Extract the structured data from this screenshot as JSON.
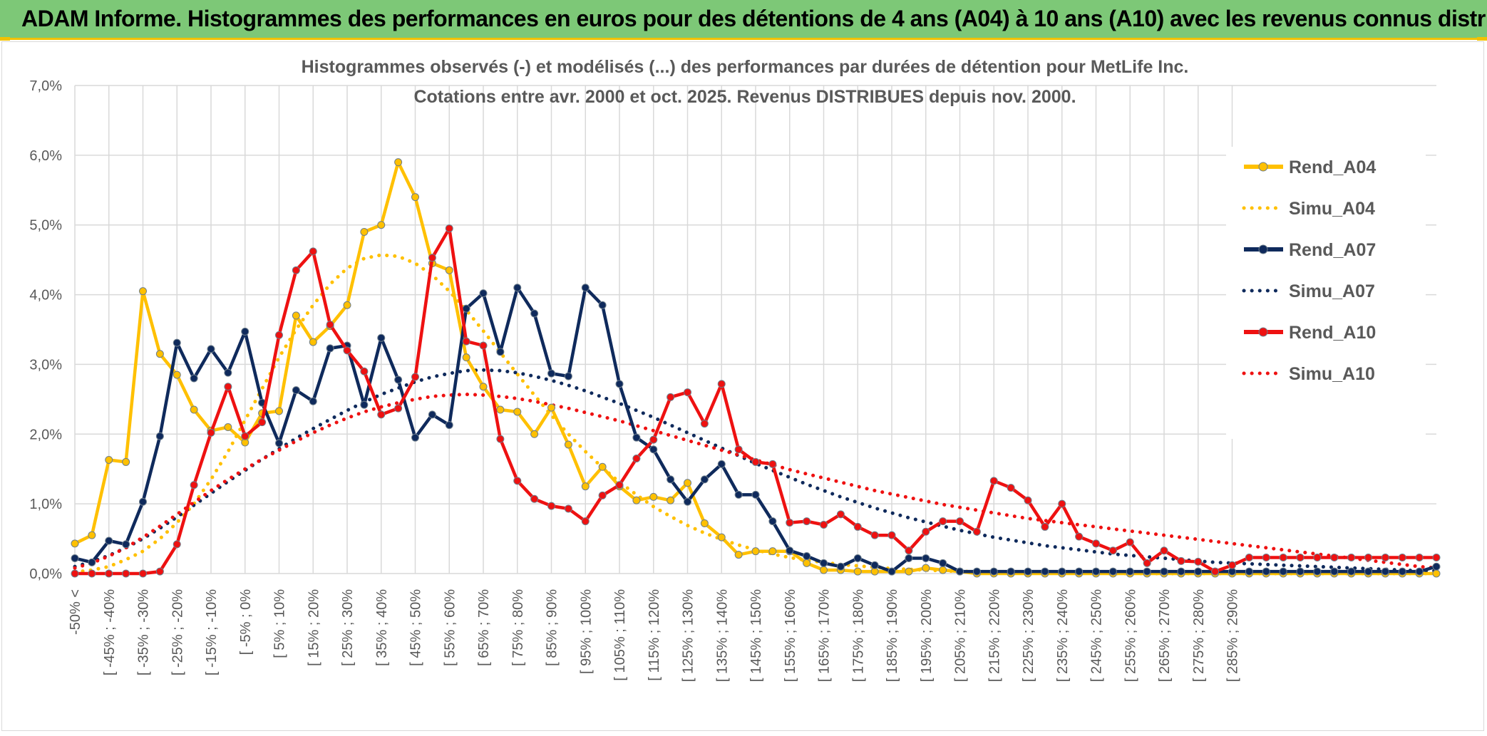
{
  "header": {
    "title": "ADAM Informe. Histogrammes des performances en euros pour des détentions de 4 ans (A04) à 10 ans (A10) avec les revenus connus distribués"
  },
  "colors": {
    "banner": "#7dc877",
    "A04": "#ffc000",
    "A07": "#0f2a5c",
    "A10": "#ee1111",
    "grid": "#d9d9d9",
    "text": "#595959"
  },
  "chart_data": {
    "type": "line",
    "title": "Histogrammes observés (-) et modélisés (...) des performances par durées de détention pour MetLife Inc.",
    "subtitle": "Cotations entre avr. 2000 et oct. 2025. Revenus DISTRIBUES depuis nov. 2000.",
    "xlabel": "",
    "ylabel": "",
    "ylim": [
      0,
      7
    ],
    "y_ticks": [
      "0,0%",
      "1,0%",
      "2,0%",
      "3,0%",
      "4,0%",
      "5,0%",
      "6,0%",
      "7,0%"
    ],
    "grid": true,
    "legend_position": "right",
    "x_labels": [
      "-50% <",
      "[ -45% ; -40%",
      "[ -35% ; -30%",
      "[ -25% ; -20%",
      "[ -15% ; -10%",
      "[ -5% ; 0%",
      "[ 5% ; 10%",
      "[ 15% ; 20%",
      "[ 25% ; 30%",
      "[ 35% ; 40%",
      "[ 45% ; 50%",
      "[ 55% ; 60%",
      "[ 65% ; 70%",
      "[ 75% ; 80%",
      "[ 85% ; 90%",
      "[ 95% ; 100%",
      "[ 105% ; 110%",
      "[ 115% ; 120%",
      "[ 125% ; 130%",
      "[ 135% ; 140%",
      "[ 145% ; 150%",
      "[ 155% ; 160%",
      "[ 165% ; 170%",
      "[ 175% ; 180%",
      "[ 185% ; 190%",
      "[ 195% ; 200%",
      "[ 205% ; 210%",
      "[ 215% ; 220%",
      "[ 225% ; 230%",
      "[ 235% ; 240%",
      "[ 245% ; 250%",
      "[ 255% ; 260%",
      "[ 265% ; 270%",
      "[ 275% ; 280%",
      "[ 285% ; 290%"
    ],
    "series": [
      {
        "name": "Rend_A04",
        "style": "solid",
        "color": "#ffc000",
        "values": [
          0.43,
          0.55,
          1.63,
          1.6,
          4.05,
          3.15,
          2.85,
          2.35,
          2.05,
          2.1,
          1.88,
          2.3,
          2.33,
          3.7,
          3.32,
          3.55,
          3.85,
          4.9,
          5.0,
          5.9,
          5.4,
          4.45,
          4.35,
          3.1,
          2.68,
          2.35,
          2.32,
          2.0,
          2.38,
          1.85,
          1.25,
          1.53,
          1.25,
          1.05,
          1.1,
          1.05,
          1.3,
          0.72,
          0.52,
          0.27,
          0.32,
          0.32,
          0.32,
          0.15,
          0.05,
          0.05,
          0.03,
          0.03,
          0.03,
          0.03,
          0.08,
          0.05,
          0.03,
          0.0,
          0.0,
          0.0,
          0.0,
          0.0,
          0.0,
          0.0,
          0.0,
          0.0,
          0.0,
          0.0,
          0.0,
          0.0,
          0.0,
          0.0,
          0.0,
          0.0,
          0.0,
          0.0,
          0.0,
          0.0,
          0.0,
          0.0,
          0.0,
          0.0,
          0.0,
          0.0,
          0.0
        ]
      },
      {
        "name": "Simu_A04",
        "style": "dotted",
        "color": "#ffc000",
        "values": [
          0.02,
          0.05,
          0.1,
          0.2,
          0.32,
          0.5,
          0.73,
          1.0,
          1.35,
          1.75,
          2.2,
          2.65,
          3.1,
          3.5,
          3.85,
          4.15,
          4.38,
          4.52,
          4.57,
          4.55,
          4.45,
          4.28,
          4.05,
          3.78,
          3.48,
          3.17,
          2.86,
          2.56,
          2.27,
          2.0,
          1.75,
          1.52,
          1.31,
          1.13,
          0.96,
          0.82,
          0.69,
          0.58,
          0.49,
          0.41,
          0.34,
          0.28,
          0.23,
          0.19,
          0.16,
          0.13,
          0.11,
          0.09,
          0.07,
          0.06,
          0.05,
          0.04,
          0.03,
          0.03,
          0.02,
          0.02,
          0.01,
          0.01,
          0.01,
          0.01,
          0.01,
          0.0,
          0.0,
          0.0,
          0.0,
          0.0,
          0.0,
          0.0,
          0.0,
          0.0,
          0.0,
          0.0,
          0.0,
          0.0,
          0.0,
          0.0,
          0.0,
          0.0,
          0.0,
          0.0,
          0.0
        ]
      },
      {
        "name": "Rend_A07",
        "style": "solid",
        "color": "#0f2a5c",
        "values": [
          0.22,
          0.16,
          0.47,
          0.42,
          1.03,
          1.97,
          3.31,
          2.8,
          3.22,
          2.88,
          3.47,
          2.45,
          1.87,
          2.63,
          2.47,
          3.23,
          3.27,
          2.42,
          3.38,
          2.78,
          1.95,
          2.28,
          2.13,
          3.8,
          4.02,
          3.18,
          4.1,
          3.73,
          2.87,
          2.83,
          4.1,
          3.85,
          2.72,
          1.95,
          1.78,
          1.35,
          1.03,
          1.35,
          1.57,
          1.13,
          1.13,
          0.75,
          0.33,
          0.25,
          0.15,
          0.1,
          0.22,
          0.12,
          0.03,
          0.22,
          0.22,
          0.15,
          0.03,
          0.03,
          0.03,
          0.03,
          0.03,
          0.03,
          0.03,
          0.03,
          0.03,
          0.03,
          0.03,
          0.03,
          0.03,
          0.03,
          0.03,
          0.03,
          0.03,
          0.03,
          0.03,
          0.03,
          0.03,
          0.03,
          0.03,
          0.03,
          0.03,
          0.03,
          0.03,
          0.03,
          0.1
        ]
      },
      {
        "name": "Simu_A07",
        "style": "dotted",
        "color": "#0f2a5c",
        "values": [
          0.1,
          0.17,
          0.26,
          0.37,
          0.5,
          0.65,
          0.81,
          0.98,
          1.15,
          1.32,
          1.48,
          1.64,
          1.79,
          1.94,
          2.08,
          2.21,
          2.34,
          2.46,
          2.57,
          2.66,
          2.75,
          2.82,
          2.87,
          2.91,
          2.92,
          2.91,
          2.88,
          2.83,
          2.77,
          2.7,
          2.62,
          2.53,
          2.44,
          2.34,
          2.24,
          2.13,
          2.02,
          1.91,
          1.8,
          1.69,
          1.58,
          1.48,
          1.38,
          1.28,
          1.19,
          1.1,
          1.02,
          0.94,
          0.87,
          0.8,
          0.74,
          0.68,
          0.62,
          0.57,
          0.52,
          0.48,
          0.44,
          0.4,
          0.37,
          0.34,
          0.31,
          0.28,
          0.26,
          0.24,
          0.22,
          0.2,
          0.18,
          0.16,
          0.15,
          0.14,
          0.13,
          0.12,
          0.11,
          0.1,
          0.09,
          0.08,
          0.07,
          0.06,
          0.05,
          0.04,
          0.04
        ]
      },
      {
        "name": "Rend_A10",
        "style": "solid",
        "color": "#ee1111",
        "values": [
          0.0,
          0.0,
          0.0,
          0.0,
          0.0,
          0.03,
          0.42,
          1.27,
          2.02,
          2.68,
          1.97,
          2.17,
          3.42,
          4.35,
          4.62,
          3.57,
          3.2,
          2.9,
          2.28,
          2.37,
          2.82,
          4.53,
          4.95,
          3.33,
          3.27,
          1.93,
          1.33,
          1.07,
          0.97,
          0.93,
          0.75,
          1.12,
          1.27,
          1.65,
          1.92,
          2.53,
          2.6,
          2.15,
          2.72,
          1.78,
          1.6,
          1.57,
          0.73,
          0.75,
          0.7,
          0.85,
          0.67,
          0.55,
          0.55,
          0.33,
          0.6,
          0.75,
          0.75,
          0.6,
          1.33,
          1.23,
          1.05,
          0.67,
          1.0,
          0.53,
          0.43,
          0.33,
          0.45,
          0.15,
          0.33,
          0.18,
          0.17,
          0.03,
          0.12,
          0.23,
          0.23,
          0.23,
          0.23,
          0.23,
          0.23,
          0.23,
          0.23,
          0.23,
          0.23,
          0.23,
          0.23
        ]
      },
      {
        "name": "Simu_A10",
        "style": "dotted",
        "color": "#ee1111",
        "values": [
          0.08,
          0.15,
          0.25,
          0.37,
          0.52,
          0.68,
          0.85,
          1.02,
          1.19,
          1.35,
          1.5,
          1.64,
          1.77,
          1.9,
          2.02,
          2.13,
          2.23,
          2.32,
          2.39,
          2.45,
          2.5,
          2.54,
          2.56,
          2.57,
          2.56,
          2.54,
          2.51,
          2.47,
          2.42,
          2.37,
          2.31,
          2.25,
          2.19,
          2.12,
          2.05,
          1.98,
          1.91,
          1.84,
          1.77,
          1.7,
          1.63,
          1.56,
          1.49,
          1.43,
          1.37,
          1.31,
          1.25,
          1.19,
          1.14,
          1.09,
          1.04,
          0.99,
          0.95,
          0.91,
          0.87,
          0.83,
          0.79,
          0.76,
          0.73,
          0.7,
          0.67,
          0.64,
          0.61,
          0.58,
          0.55,
          0.52,
          0.49,
          0.46,
          0.43,
          0.4,
          0.37,
          0.34,
          0.31,
          0.28,
          0.25,
          0.22,
          0.19,
          0.16,
          0.13,
          0.1,
          0.08
        ]
      }
    ]
  }
}
